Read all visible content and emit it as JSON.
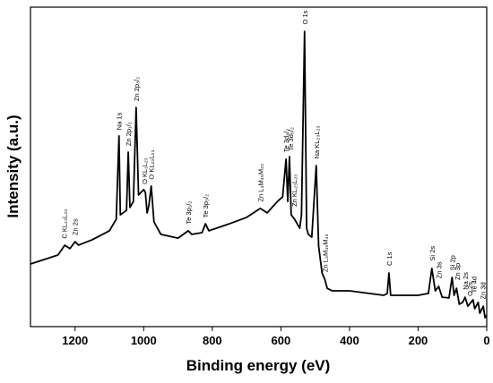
{
  "chart_data": {
    "type": "line",
    "xlabel": "Binding energy (eV)",
    "ylabel": "Intensity (a.u.)",
    "xlim": [
      1330,
      0
    ],
    "ylim": [
      0,
      100
    ],
    "xticks": [
      1200,
      1000,
      800,
      600,
      400,
      200,
      0
    ],
    "color": "#000000",
    "x": [
      1330,
      1250,
      1230,
      1215,
      1200,
      1190,
      1150,
      1100,
      1080,
      1072,
      1068,
      1050,
      1045,
      1040,
      1030,
      1022,
      1015,
      1000,
      995,
      990,
      985,
      978,
      970,
      950,
      900,
      870,
      860,
      830,
      820,
      810,
      750,
      700,
      660,
      640,
      610,
      595,
      585,
      580,
      575,
      570,
      560,
      545,
      540,
      531,
      525,
      520,
      510,
      497,
      490,
      480,
      472,
      465,
      450,
      400,
      300,
      290,
      285,
      280,
      200,
      170,
      160,
      150,
      140,
      130,
      110,
      101,
      95,
      88,
      80,
      70,
      63,
      55,
      40,
      35,
      25,
      20,
      10,
      5,
      0
    ],
    "y": [
      19.6,
      22.4,
      25.5,
      24.4,
      26.6,
      25.5,
      27.2,
      30,
      33.6,
      59.7,
      35,
      36.4,
      54.6,
      37.3,
      39.2,
      68.6,
      41.2,
      42.9,
      42,
      35.6,
      37.8,
      44,
      32.8,
      28.9,
      27.7,
      30,
      28.9,
      29.4,
      32.2,
      30,
      32.2,
      34.2,
      37,
      35.6,
      39.2,
      40.6,
      52.4,
      39.2,
      53.2,
      35,
      33.6,
      30.8,
      35,
      92.4,
      30.8,
      28.9,
      28,
      50.4,
      25.2,
      16.8,
      14.8,
      12,
      11.2,
      11.2,
      9.8,
      10.4,
      16.8,
      9.8,
      9.8,
      10.4,
      18.2,
      11.2,
      12.6,
      9.2,
      9,
      15.4,
      9.8,
      12,
      7,
      7.6,
      9.2,
      6.4,
      8.4,
      5.6,
      7.6,
      4.2,
      6.4,
      2.8,
      3.6
    ],
    "annotations": [
      {
        "text": "O 1s",
        "x": 531,
        "y": 94
      },
      {
        "text": "Na 1s",
        "x": 1072,
        "y": 61
      },
      {
        "text": "Zn 2p₁/₂",
        "x": 1045,
        "y": 56
      },
      {
        "text": "Zn 2p₃/₂",
        "x": 1022,
        "y": 70
      },
      {
        "text": "O KL₁L₂₃",
        "x": 998,
        "y": 44
      },
      {
        "text": "O KL₂₃L₂₃",
        "x": 978,
        "y": 45.5
      },
      {
        "text": "C KL₂₃L₂₃",
        "x": 1232,
        "y": 27
      },
      {
        "text": "Zn 2s",
        "x": 1200,
        "y": 28
      },
      {
        "text": "Te 3p₁/₂",
        "x": 870,
        "y": 31.5
      },
      {
        "text": "Te 3p₃/₂",
        "x": 820,
        "y": 33.5
      },
      {
        "text": "Zn L₃M₄₅M₂₃",
        "x": 660,
        "y": 38.5
      },
      {
        "text": "Te 3d₃/₂",
        "x": 585,
        "y": 54
      },
      {
        "text": "Te 3d₅/₂",
        "x": 572,
        "y": 54.5
      },
      {
        "text": "Zn KL₂₃L₂₃",
        "x": 562,
        "y": 37
      },
      {
        "text": "Na KL₂₃L₂₃",
        "x": 497,
        "y": 52
      },
      {
        "text": "Zn L₃M₄₅M₄₅",
        "x": 472,
        "y": 16.5
      },
      {
        "text": "C 1s",
        "x": 285,
        "y": 18.5
      },
      {
        "text": "Si 2s",
        "x": 160,
        "y": 20
      },
      {
        "text": "Zn 3s",
        "x": 140,
        "y": 14.5
      },
      {
        "text": "Si 2p",
        "x": 101,
        "y": 17
      },
      {
        "text": "Zn 3p",
        "x": 86,
        "y": 14
      },
      {
        "text": "Na 2s",
        "x": 63,
        "y": 11
      },
      {
        "text": "O 2s",
        "x": 50,
        "y": 9
      },
      {
        "text": "Te 4d",
        "x": 38,
        "y": 10
      },
      {
        "text": "Zn 3d",
        "x": 12,
        "y": 8
      }
    ]
  }
}
